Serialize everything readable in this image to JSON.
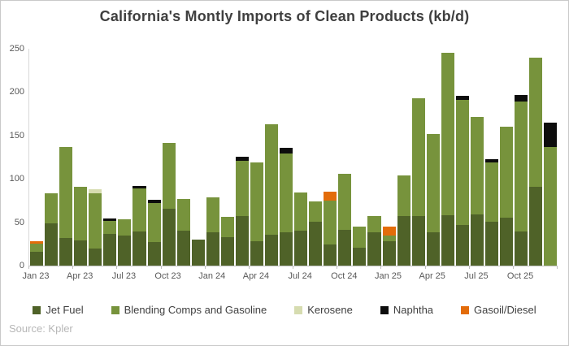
{
  "chart_data": {
    "type": "bar",
    "stacked": true,
    "title": "California's Montly Imports of Clean Products (kb/d)",
    "source": "Source: Kpler",
    "xlabel": "",
    "ylabel": "",
    "ylim": [
      0,
      250
    ],
    "y_ticks": [
      0,
      50,
      100,
      150,
      200,
      250
    ],
    "x_tick_every": 3,
    "grid": false,
    "legend_position": "bottom",
    "categories": [
      "Jan 23",
      "Feb 23",
      "Mar 23",
      "Apr 23",
      "May 23",
      "Jun 23",
      "Jul 23",
      "Aug 23",
      "Sep 23",
      "Oct 23",
      "Nov 23",
      "Dec 23",
      "Jan 24",
      "Feb 24",
      "Mar 24",
      "Apr 24",
      "May 24",
      "Jun 24",
      "Jul 24",
      "Aug 24",
      "Sep 24",
      "Oct 24",
      "Nov 24",
      "Dec 24",
      "Jan 25",
      "Feb 25",
      "Mar 25",
      "Apr 25",
      "May 25",
      "Jun 25",
      "Jul 25",
      "Aug 25",
      "Sep 25",
      "Oct 25",
      "Nov 25",
      "Dec 25"
    ],
    "series": [
      {
        "name": "Jet Fuel",
        "color": "#4f6228",
        "values": [
          16,
          49,
          32,
          29,
          20,
          37,
          35,
          39,
          27,
          66,
          40,
          30,
          38,
          33,
          57,
          28,
          36,
          38,
          40,
          51,
          24,
          41,
          21,
          38,
          28,
          57,
          57,
          38,
          58,
          47,
          59,
          51,
          55,
          39,
          91,
          0
        ]
      },
      {
        "name": "Blending Comps and Gasoline",
        "color": "#77933c",
        "values": [
          9,
          34,
          105,
          62,
          63,
          15,
          18,
          50,
          45,
          75,
          37,
          0,
          41,
          23,
          64,
          91,
          127,
          91,
          44,
          23,
          51,
          65,
          24,
          19,
          7,
          47,
          136,
          114,
          187,
          144,
          112,
          68,
          105,
          150,
          149,
          137
        ]
      },
      {
        "name": "Kerosene",
        "color": "#d6dcb0",
        "values": [
          0,
          0,
          0,
          0,
          5,
          0,
          0,
          0,
          0,
          0,
          0,
          0,
          0,
          0,
          0,
          0,
          0,
          0,
          0,
          0,
          0,
          0,
          0,
          0,
          0,
          0,
          0,
          0,
          0,
          0,
          0,
          0,
          0,
          0,
          0,
          0
        ]
      },
      {
        "name": "Naphtha",
        "color": "#0d0d0d",
        "values": [
          0,
          0,
          0,
          0,
          0,
          2,
          0,
          3,
          4,
          0,
          0,
          0,
          0,
          0,
          4,
          0,
          0,
          7,
          0,
          0,
          0,
          0,
          0,
          0,
          0,
          0,
          0,
          0,
          0,
          5,
          0,
          4,
          0,
          8,
          0,
          28
        ]
      },
      {
        "name": "Gasoil/Diesel",
        "color": "#e36c0a",
        "values": [
          3,
          0,
          0,
          0,
          0,
          0,
          0,
          0,
          0,
          0,
          0,
          0,
          0,
          0,
          0,
          0,
          0,
          0,
          0,
          0,
          10,
          0,
          0,
          0,
          10,
          0,
          0,
          0,
          0,
          0,
          0,
          0,
          0,
          0,
          0,
          0
        ]
      }
    ]
  }
}
